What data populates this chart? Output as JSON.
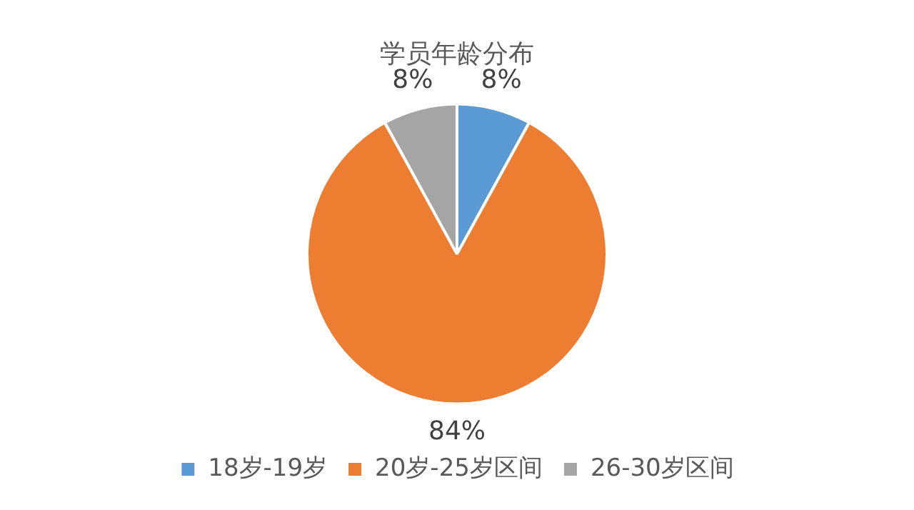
{
  "chart_data": {
    "type": "pie",
    "title": "学员年龄分布",
    "categories": [
      "18岁-19岁",
      "20岁-25岁区间",
      "26-30岁区间"
    ],
    "values": [
      8,
      84,
      8
    ],
    "colors": [
      "#5b9bd5",
      "#ed7d31",
      "#a5a5a5"
    ],
    "value_labels": [
      "8%",
      "84%",
      "8%"
    ],
    "legend": "bottom"
  }
}
